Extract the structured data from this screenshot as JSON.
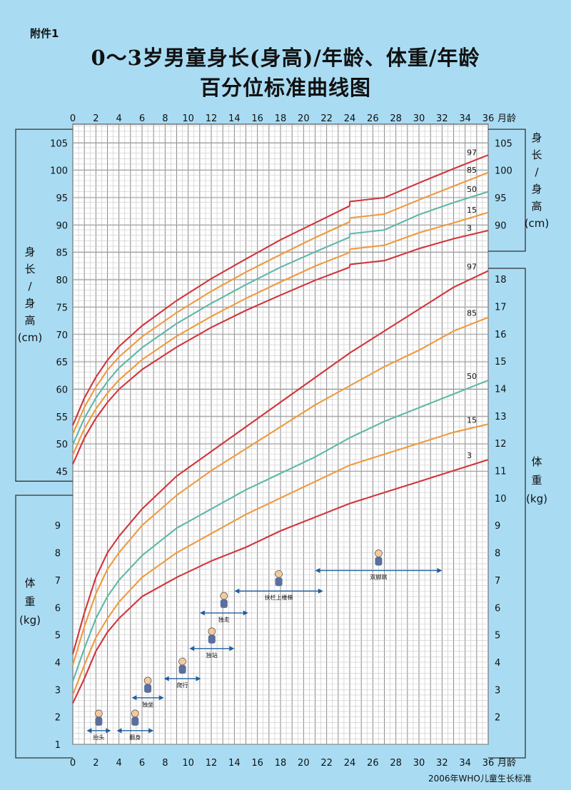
{
  "header": {
    "attachment": "附件1",
    "title_line1": "0～3岁男童身长(身高)/年龄、体重/年龄",
    "title_line2": "百分位标准曲线图"
  },
  "footer": {
    "source": "2006年WHO儿童生长标准"
  },
  "axis_labels": {
    "month_unit": "月龄",
    "length_left": [
      "身",
      "长",
      "/",
      "身",
      "高",
      "(cm)"
    ],
    "length_right": [
      "身",
      "长",
      "/",
      "身",
      "高",
      "(cm)"
    ],
    "weight_left": [
      "体",
      "重",
      "(kg)"
    ],
    "weight_right": [
      "体",
      "重",
      "(kg)"
    ]
  },
  "colors": {
    "p3": "#d2343c",
    "p15": "#ef9a3e",
    "p50": "#5fb8a8",
    "p85": "#ef9a3e",
    "p97": "#d2343c",
    "background": "#a9dcf3",
    "grid": "#9a9a9a",
    "arrow": "#1f5f9e"
  },
  "chart_data": [
    {
      "type": "line",
      "title": "身长(身高)/年龄",
      "xlabel": "月龄",
      "ylabel": "身长/身高 (cm)",
      "xlim": [
        0,
        36
      ],
      "ylim": [
        45,
        105
      ],
      "x_ticks": [
        0,
        2,
        4,
        6,
        8,
        10,
        12,
        14,
        16,
        18,
        20,
        22,
        24,
        26,
        28,
        30,
        32,
        34,
        36
      ],
      "y_ticks_left": [
        45,
        50,
        55,
        60,
        65,
        70,
        75,
        80,
        85,
        90,
        95,
        100,
        105
      ],
      "y_ticks_right": [
        90,
        95,
        100,
        105
      ],
      "grid": true,
      "x": [
        0,
        1,
        2,
        3,
        4,
        6,
        9,
        12,
        15,
        18,
        21,
        24,
        27,
        30,
        33,
        36
      ],
      "series": [
        {
          "name": "97",
          "values": [
            53.4,
            58.4,
            62.2,
            65.3,
            67.8,
            71.6,
            76.2,
            80.2,
            83.8,
            87.3,
            90.4,
            93.5,
            95.0,
            97.7,
            100.3,
            102.8
          ],
          "break_after_x": 24
        },
        {
          "name": "85",
          "values": [
            51.8,
            56.7,
            60.4,
            63.5,
            65.9,
            69.6,
            74.0,
            77.9,
            81.4,
            84.6,
            87.7,
            90.6,
            92.0,
            94.6,
            97.1,
            99.6
          ],
          "break_after_x": 24
        },
        {
          "name": "50",
          "values": [
            49.9,
            54.7,
            58.4,
            61.4,
            63.9,
            67.6,
            72.0,
            75.7,
            79.1,
            82.3,
            85.1,
            87.8,
            89.1,
            91.9,
            94.1,
            96.1
          ],
          "break_after_x": 24
        },
        {
          "name": "15",
          "values": [
            48.0,
            52.8,
            56.4,
            59.3,
            61.7,
            65.4,
            69.7,
            73.3,
            76.6,
            79.6,
            82.5,
            85.0,
            86.3,
            88.6,
            90.4,
            92.3
          ],
          "break_after_x": 24
        },
        {
          "name": "3",
          "values": [
            46.3,
            51.1,
            54.7,
            57.6,
            60.0,
            63.6,
            67.7,
            71.3,
            74.4,
            77.2,
            79.9,
            82.3,
            83.5,
            85.7,
            87.5,
            89.0
          ],
          "break_after_x": 24
        }
      ]
    },
    {
      "type": "line",
      "title": "体重/年龄",
      "xlabel": "月龄",
      "ylabel": "体重 (kg)",
      "xlim": [
        0,
        36
      ],
      "ylim": [
        1,
        18
      ],
      "y_ticks_left": [
        1,
        2,
        3,
        4,
        5,
        6,
        7,
        8,
        9
      ],
      "y_ticks_right": [
        2,
        3,
        4,
        5,
        6,
        7,
        8,
        9,
        10,
        11,
        12,
        13,
        14,
        15,
        16,
        17,
        18
      ],
      "grid": true,
      "x": [
        0,
        1,
        2,
        3,
        4,
        6,
        9,
        12,
        15,
        18,
        21,
        24,
        27,
        30,
        33,
        36
      ],
      "series": [
        {
          "name": "97",
          "values": [
            4.3,
            5.8,
            7.1,
            8.0,
            8.6,
            9.6,
            10.8,
            11.7,
            12.6,
            13.5,
            14.4,
            15.3,
            16.1,
            16.9,
            17.7,
            18.3
          ]
        },
        {
          "name": "85",
          "values": [
            3.9,
            5.3,
            6.5,
            7.4,
            8.0,
            9.0,
            10.1,
            11.0,
            11.8,
            12.6,
            13.4,
            14.1,
            14.8,
            15.4,
            16.1,
            16.6
          ]
        },
        {
          "name": "50",
          "values": [
            3.3,
            4.5,
            5.6,
            6.4,
            7.0,
            7.9,
            8.9,
            9.6,
            10.3,
            10.9,
            11.5,
            12.2,
            12.8,
            13.3,
            13.8,
            14.3
          ]
        },
        {
          "name": "15",
          "values": [
            2.8,
            3.9,
            4.9,
            5.6,
            6.2,
            7.1,
            8.0,
            8.7,
            9.4,
            10.0,
            10.6,
            11.2,
            11.6,
            12.0,
            12.4,
            12.7
          ]
        },
        {
          "name": "3",
          "values": [
            2.5,
            3.4,
            4.4,
            5.1,
            5.6,
            6.4,
            7.1,
            7.7,
            8.2,
            8.8,
            9.3,
            9.8,
            10.2,
            10.6,
            11.0,
            11.4
          ]
        }
      ]
    }
  ],
  "milestones": [
    {
      "label": "抬头",
      "start": 1.2,
      "end": 3.3,
      "y": 1.5
    },
    {
      "label": "翻身",
      "start": 3.8,
      "end": 7.0,
      "y": 1.5
    },
    {
      "label": "独坐",
      "start": 5.1,
      "end": 7.9,
      "y": 2.7
    },
    {
      "label": "爬行",
      "start": 7.9,
      "end": 11.1,
      "y": 3.4
    },
    {
      "label": "独站",
      "start": 10.1,
      "end": 14.0,
      "y": 4.5
    },
    {
      "label": "独走",
      "start": 11.0,
      "end": 15.2,
      "y": 5.8
    },
    {
      "label": "扶栏上楼梯",
      "start": 14.0,
      "end": 21.7,
      "y": 6.6
    },
    {
      "label": "双脚跳",
      "start": 21.0,
      "end": 32.0,
      "y": 7.35
    }
  ]
}
